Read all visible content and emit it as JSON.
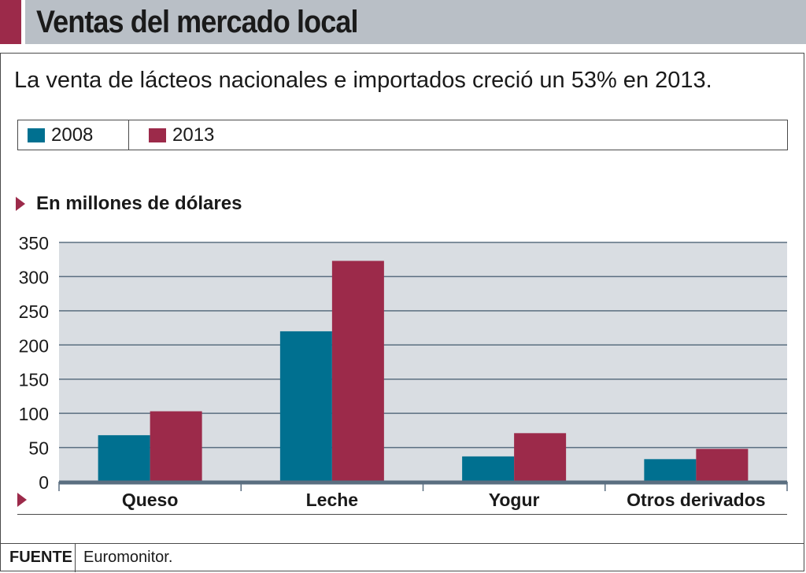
{
  "header": {
    "title": "Ventas del mercado local"
  },
  "subtitle": "La venta de lácteos nacionales e importados creció un 53% en 2013.",
  "legend": [
    {
      "label": "2008",
      "color": "#007090"
    },
    {
      "label": "2013",
      "color": "#9c2a4a"
    }
  ],
  "unit_label": "En millones de dólares",
  "source": {
    "label": "FUENTE",
    "text": "Euromonitor."
  },
  "colors": {
    "accent": "#9c2a4a",
    "plot_bg": "#d9dde2",
    "header_bg": "#b9bfc6"
  },
  "chart_data": {
    "type": "bar",
    "categories": [
      "Queso",
      "Leche",
      "Yogur",
      "Otros derivados"
    ],
    "series": [
      {
        "name": "2008",
        "values": [
          68,
          220,
          37,
          33
        ],
        "color": "#007090"
      },
      {
        "name": "2013",
        "values": [
          103,
          323,
          71,
          48
        ],
        "color": "#9c2a4a"
      }
    ],
    "ylabel": "En millones de dólares",
    "ylim": [
      0,
      350
    ],
    "yticks": [
      0,
      50,
      100,
      150,
      200,
      250,
      300,
      350
    ],
    "grid": true
  }
}
